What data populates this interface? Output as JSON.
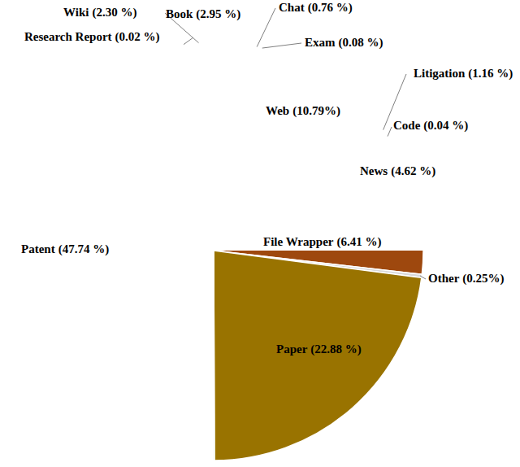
{
  "chart_data": {
    "type": "pie",
    "categories": [
      "Book",
      "Chat",
      "Exam",
      "Web",
      "Litigation",
      "Code",
      "News",
      "File Wrapper",
      "Other",
      "Paper",
      "Patent",
      "Research Report",
      "Wiki"
    ],
    "values": [
      2.95,
      0.76,
      0.08,
      10.79,
      1.16,
      0.04,
      4.62,
      6.41,
      0.25,
      22.88,
      47.74,
      0.02,
      2.3
    ],
    "value_labels": [
      "(2.95 %)",
      "(0.76 %)",
      "(0.08 %)",
      "(10.79%)",
      "(1.16 %)",
      "(0.04 %)",
      "(4.62 %)",
      "(6.41 %)",
      "(0.25%)",
      "(22.88 %)",
      "(47.74 %)",
      "(0.02 %)",
      "(2.30 %)"
    ],
    "colors": [
      "#ff0000",
      "#ed7d31",
      "#f4b183",
      "#ffc000",
      "#ffff00",
      "#ffe699",
      "#9dc3e6",
      "#9e480e",
      "#d9d9d9",
      "#997300",
      "#a9d18e",
      "#4472c4",
      "#2f5597"
    ]
  }
}
